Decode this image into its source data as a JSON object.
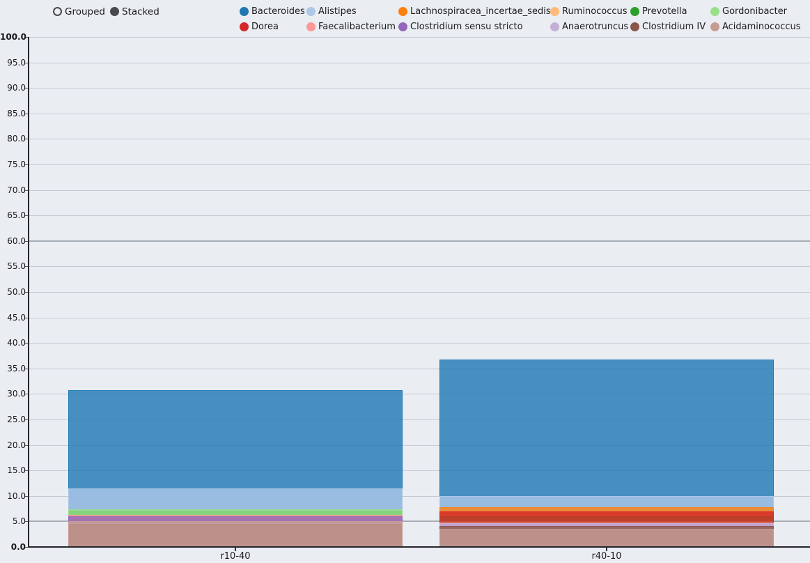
{
  "controls": {
    "options": [
      {
        "label": "Grouped",
        "selected": false
      },
      {
        "label": "Stacked",
        "selected": true
      }
    ]
  },
  "colors": {
    "background": "#eaedf2",
    "axis": "#26262e",
    "gridline": "#c4cad2",
    "gridline_emphasized": "#a6adb5",
    "radio": "#48484d"
  },
  "chart_data": {
    "type": "bar",
    "stacked": true,
    "title": "",
    "xlabel": "",
    "ylabel": "",
    "categories": [
      "r10-40",
      "r40-10"
    ],
    "series": [
      {
        "name": "Bacteroides",
        "color": "#1f77b4",
        "values": [
          30.8,
          36.7
        ]
      },
      {
        "name": "Alistipes",
        "color": "#aec7e8",
        "values": [
          11.5,
          10.0
        ]
      },
      {
        "name": "Lachnospiracea_incertae_sedis",
        "color": "#ff7f0e",
        "values": [
          6.3,
          7.8
        ]
      },
      {
        "name": "Ruminococcus",
        "color": "#ffbb78",
        "values": [
          6.2,
          5.8
        ]
      },
      {
        "name": "Prevotella",
        "color": "#2ca02c",
        "values": [
          7.1,
          6.0
        ]
      },
      {
        "name": "Gordonibacter",
        "color": "#98df8a",
        "values": [
          7.4,
          5.0
        ]
      },
      {
        "name": "Dorea",
        "color": "#d62728",
        "values": [
          4.1,
          6.9
        ]
      },
      {
        "name": "Faecalibacterium",
        "color": "#ff9896",
        "values": [
          6.3,
          4.8
        ]
      },
      {
        "name": "Clostridium sensu stricto",
        "color": "#9467bd",
        "values": [
          6.0,
          4.7
        ]
      },
      {
        "name": "Anaerotruncus",
        "color": "#c5b0d5",
        "values": [
          4.8,
          4.7
        ]
      },
      {
        "name": "Clostridium IV",
        "color": "#8c564b",
        "values": [
          4.5,
          4.1
        ]
      },
      {
        "name": "Acidaminococcus",
        "color": "#c49c94",
        "values": [
          5.0,
          3.5
        ]
      }
    ],
    "ylim": [
      0,
      100
    ],
    "ytick_step": 5,
    "ytick_format": "one_decimal",
    "emphasized_gridlines": [
      60,
      5
    ],
    "grid": true,
    "legend_position": "top",
    "bar_fill_opacity": 0.8
  }
}
